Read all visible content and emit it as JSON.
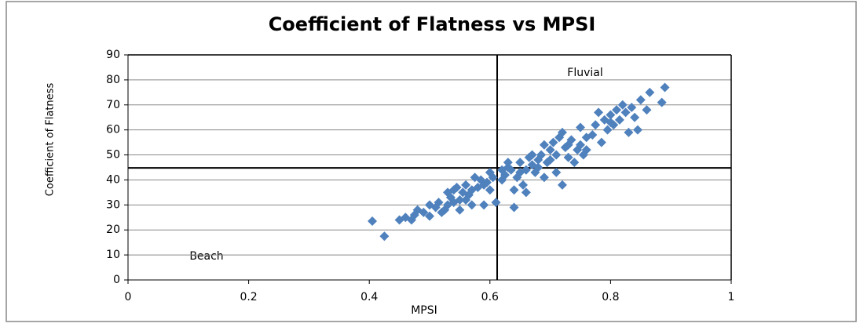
{
  "chart_data": {
    "type": "scatter",
    "title": "Coefficient of Flatness vs MPSI",
    "x_label": "MPSI",
    "y_label": "Coefficient of Flatness",
    "annotations": [
      "Fluvial",
      "Beach"
    ],
    "color": "#4f81bd",
    "xlim": [
      0,
      1
    ],
    "xticks": [
      0,
      0.2,
      0.4,
      0.6,
      0.8,
      1
    ],
    "ylim": [
      0,
      90
    ],
    "yticks": [
      0,
      10,
      20,
      30,
      40,
      50,
      60,
      70,
      80,
      90
    ],
    "grid": true,
    "ref_x": 0.612,
    "ref_y": 44.8,
    "x": [
      0.405,
      0.425,
      0.45,
      0.46,
      0.47,
      0.475,
      0.48,
      0.49,
      0.5,
      0.5,
      0.51,
      0.515,
      0.52,
      0.525,
      0.53,
      0.535,
      0.54,
      0.545,
      0.55,
      0.55,
      0.555,
      0.56,
      0.565,
      0.57,
      0.575,
      0.58,
      0.585,
      0.59,
      0.59,
      0.595,
      0.6,
      0.6,
      0.605,
      0.61,
      0.62,
      0.625,
      0.63,
      0.635,
      0.64,
      0.64,
      0.645,
      0.65,
      0.655,
      0.66,
      0.66,
      0.665,
      0.67,
      0.675,
      0.68,
      0.685,
      0.69,
      0.69,
      0.695,
      0.7,
      0.705,
      0.71,
      0.71,
      0.715,
      0.72,
      0.72,
      0.725,
      0.73,
      0.735,
      0.74,
      0.745,
      0.75,
      0.75,
      0.755,
      0.76,
      0.77,
      0.775,
      0.78,
      0.785,
      0.79,
      0.795,
      0.8,
      0.805,
      0.81,
      0.815,
      0.82,
      0.825,
      0.83,
      0.835,
      0.84,
      0.845,
      0.85,
      0.86,
      0.865,
      0.885,
      0.89,
      0.54,
      0.53,
      0.56,
      0.57,
      0.62,
      0.63,
      0.65,
      0.67,
      0.68,
      0.7,
      0.73,
      0.76,
      0.8
    ],
    "values": [
      23.5,
      17.5,
      24,
      25,
      24,
      26,
      28,
      27,
      25.5,
      30,
      29,
      31,
      27,
      28,
      30,
      33,
      36,
      37,
      32,
      28,
      35,
      38,
      34,
      36,
      41,
      37,
      40,
      30,
      38,
      39,
      43,
      36,
      41,
      31,
      40,
      42,
      45,
      44,
      29,
      36,
      41,
      47,
      38,
      35,
      44,
      49,
      46,
      43,
      48,
      50,
      54,
      41,
      47,
      52,
      55,
      43,
      50,
      57,
      38,
      59,
      53,
      49,
      56,
      47,
      52,
      61,
      54,
      50,
      57,
      58,
      62,
      67,
      55,
      64,
      60,
      66,
      62,
      68,
      64,
      70,
      67,
      59,
      69,
      65,
      60,
      72,
      68,
      75,
      71,
      77,
      31,
      35,
      32,
      30,
      44,
      47,
      43,
      50,
      45,
      48,
      54,
      52,
      63
    ]
  }
}
